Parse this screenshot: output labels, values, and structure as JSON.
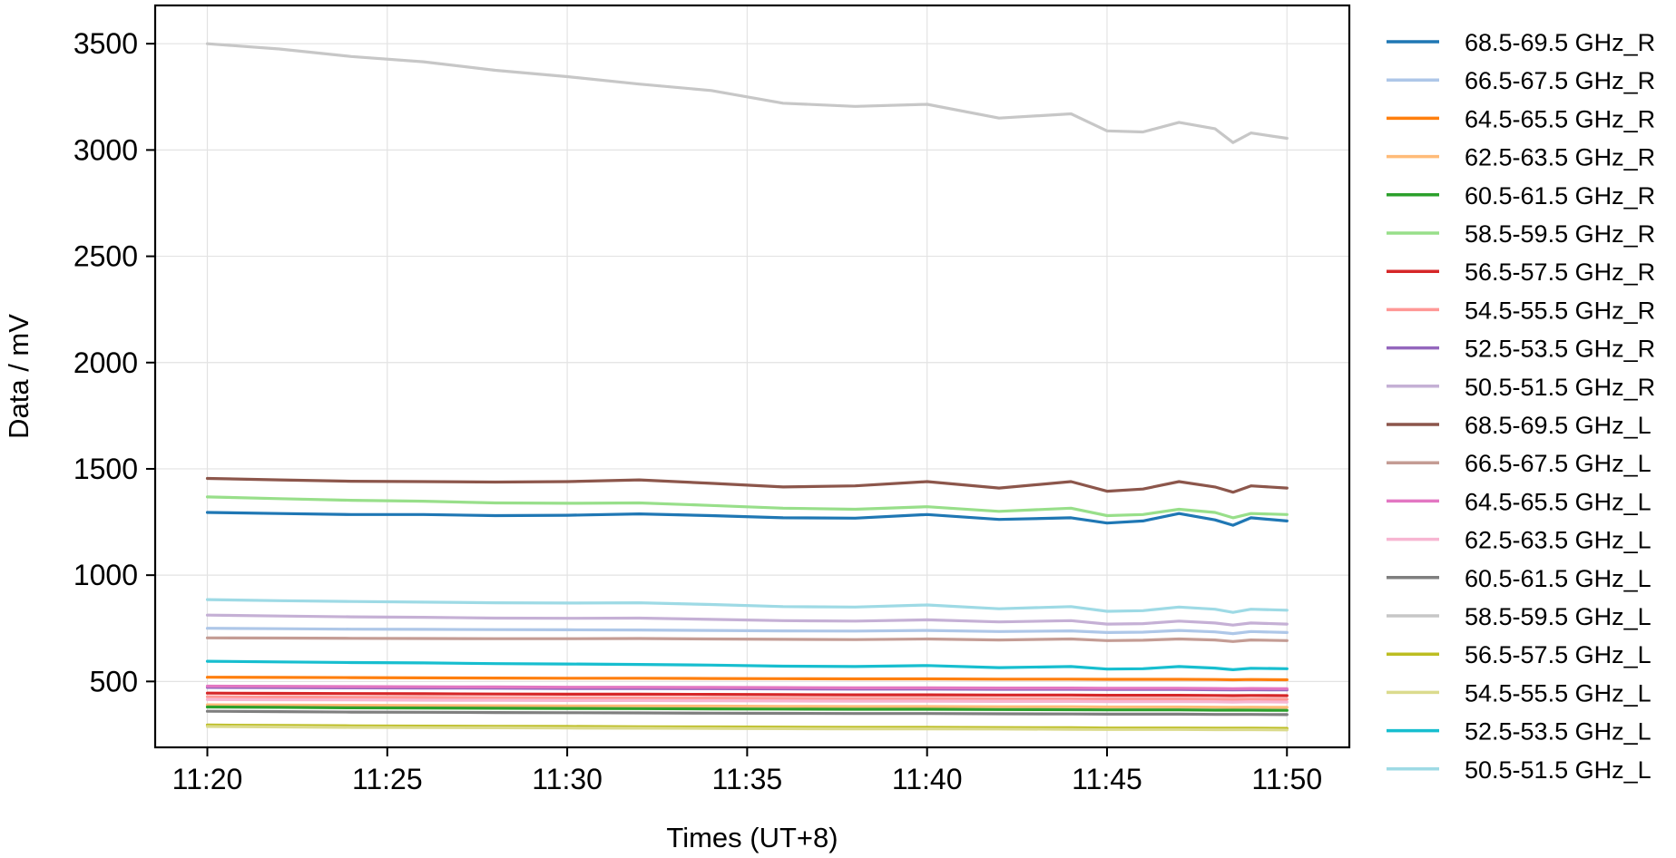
{
  "chart_data": {
    "type": "line",
    "xlabel": "Times (UT+8)",
    "ylabel": "Data / mV",
    "xlim": [
      "11:18:33",
      "11:51:44"
    ],
    "ylim": [
      190,
      3680
    ],
    "x_ticks": [
      "11:20",
      "11:25",
      "11:30",
      "11:35",
      "11:40",
      "11:45",
      "11:50"
    ],
    "y_ticks": [
      500,
      1000,
      1500,
      2000,
      2500,
      3000,
      3500
    ],
    "grid": true,
    "legend_position": "outside-right",
    "x": [
      "11:20",
      "11:22",
      "11:24",
      "11:26",
      "11:28",
      "11:30",
      "11:32",
      "11:34",
      "11:36",
      "11:38",
      "11:40",
      "11:42",
      "11:44",
      "11:45",
      "11:46",
      "11:47",
      "11:48",
      "11:48:30",
      "11:49",
      "11:50"
    ],
    "series": [
      {
        "name": "68.5-69.5 GHz_R",
        "color": "#1f77b4",
        "values": [
          1295,
          1290,
          1285,
          1285,
          1280,
          1282,
          1288,
          1280,
          1270,
          1268,
          1285,
          1262,
          1270,
          1245,
          1255,
          1290,
          1260,
          1235,
          1270,
          1255
        ]
      },
      {
        "name": "66.5-67.5 GHz_R",
        "color": "#aec7e8",
        "values": [
          750,
          748,
          746,
          745,
          744,
          743,
          742,
          740,
          738,
          737,
          740,
          735,
          738,
          730,
          732,
          740,
          733,
          725,
          735,
          730
        ]
      },
      {
        "name": "64.5-65.5 GHz_R",
        "color": "#ff7f0e",
        "values": [
          520,
          519,
          518,
          517,
          516,
          515,
          515,
          514,
          513,
          512,
          512,
          511,
          511,
          510,
          510,
          510,
          509,
          508,
          509,
          508
        ]
      },
      {
        "name": "62.5-63.5 GHz_R",
        "color": "#ffbb78",
        "values": [
          390,
          389,
          388,
          387,
          386,
          385,
          385,
          384,
          383,
          382,
          382,
          381,
          381,
          380,
          380,
          380,
          379,
          378,
          379,
          378
        ]
      },
      {
        "name": "60.5-61.5 GHz_R",
        "color": "#2ca02c",
        "values": [
          380,
          378,
          376,
          375,
          374,
          373,
          372,
          371,
          370,
          369,
          369,
          368,
          367,
          366,
          366,
          366,
          365,
          365,
          365,
          364
        ]
      },
      {
        "name": "58.5-59.5 GHz_R",
        "color": "#98df8a",
        "values": [
          1368,
          1360,
          1352,
          1348,
          1340,
          1338,
          1340,
          1328,
          1315,
          1310,
          1322,
          1300,
          1315,
          1280,
          1285,
          1310,
          1295,
          1270,
          1290,
          1285
        ]
      },
      {
        "name": "56.5-57.5 GHz_R",
        "color": "#d62728",
        "values": [
          445,
          444,
          443,
          442,
          441,
          440,
          440,
          439,
          438,
          437,
          437,
          436,
          436,
          435,
          435,
          435,
          434,
          433,
          434,
          433
        ]
      },
      {
        "name": "54.5-55.5 GHz_R",
        "color": "#ff9896",
        "values": [
          428,
          427,
          426,
          425,
          424,
          423,
          423,
          422,
          421,
          420,
          420,
          419,
          419,
          418,
          418,
          418,
          417,
          416,
          417,
          416
        ]
      },
      {
        "name": "52.5-53.5 GHz_R",
        "color": "#9467bd",
        "values": [
          472,
          471,
          470,
          469,
          468,
          467,
          467,
          466,
          465,
          464,
          464,
          463,
          463,
          462,
          462,
          462,
          461,
          460,
          461,
          460
        ]
      },
      {
        "name": "50.5-51.5 GHz_R",
        "color": "#c5b0d5",
        "values": [
          812,
          808,
          804,
          802,
          798,
          797,
          798,
          792,
          786,
          784,
          790,
          780,
          786,
          770,
          772,
          784,
          775,
          765,
          775,
          770
        ]
      },
      {
        "name": "68.5-69.5 GHz_L",
        "color": "#8c564b",
        "values": [
          1455,
          1448,
          1442,
          1440,
          1438,
          1440,
          1448,
          1432,
          1415,
          1420,
          1440,
          1410,
          1440,
          1395,
          1405,
          1440,
          1415,
          1390,
          1420,
          1410
        ]
      },
      {
        "name": "66.5-67.5 GHz_L",
        "color": "#c49c94",
        "values": [
          705,
          704,
          703,
          702,
          701,
          701,
          702,
          700,
          698,
          697,
          700,
          695,
          700,
          692,
          694,
          700,
          695,
          688,
          695,
          692
        ]
      },
      {
        "name": "64.5-65.5 GHz_L",
        "color": "#e377c2",
        "values": [
          478,
          477,
          476,
          475,
          474,
          473,
          473,
          472,
          471,
          470,
          470,
          469,
          469,
          468,
          468,
          468,
          467,
          466,
          467,
          466
        ]
      },
      {
        "name": "62.5-63.5 GHz_L",
        "color": "#f7b6d2",
        "values": [
          415,
          414,
          413,
          412,
          411,
          410,
          410,
          409,
          408,
          407,
          407,
          406,
          406,
          405,
          405,
          405,
          404,
          403,
          404,
          403
        ]
      },
      {
        "name": "60.5-61.5 GHz_L",
        "color": "#7f7f7f",
        "values": [
          360,
          358,
          356,
          355,
          354,
          353,
          352,
          351,
          350,
          349,
          349,
          348,
          347,
          346,
          346,
          346,
          345,
          345,
          345,
          344
        ]
      },
      {
        "name": "58.5-59.5 GHz_L",
        "color": "#c7c7c7",
        "values": [
          3500,
          3475,
          3440,
          3415,
          3375,
          3345,
          3310,
          3280,
          3220,
          3205,
          3215,
          3150,
          3170,
          3090,
          3085,
          3130,
          3100,
          3035,
          3080,
          3055
        ]
      },
      {
        "name": "56.5-57.5 GHz_L",
        "color": "#bcbd22",
        "values": [
          295,
          293,
          291,
          290,
          289,
          288,
          287,
          286,
          285,
          284,
          284,
          283,
          282,
          281,
          281,
          281,
          280,
          280,
          280,
          279
        ]
      },
      {
        "name": "54.5-55.5 GHz_L",
        "color": "#dbdb8d",
        "values": [
          288,
          286,
          284,
          283,
          282,
          281,
          280,
          279,
          278,
          277,
          277,
          276,
          275,
          274,
          274,
          274,
          273,
          273,
          273,
          272
        ]
      },
      {
        "name": "52.5-53.5 GHz_L",
        "color": "#17becf",
        "values": [
          595,
          592,
          589,
          587,
          584,
          582,
          580,
          577,
          572,
          570,
          575,
          565,
          570,
          558,
          560,
          570,
          563,
          555,
          562,
          560
        ]
      },
      {
        "name": "50.5-51.5 GHz_L",
        "color": "#9edae5",
        "values": [
          885,
          880,
          876,
          873,
          870,
          869,
          870,
          862,
          852,
          850,
          860,
          842,
          852,
          830,
          833,
          850,
          840,
          825,
          840,
          835
        ]
      }
    ]
  }
}
